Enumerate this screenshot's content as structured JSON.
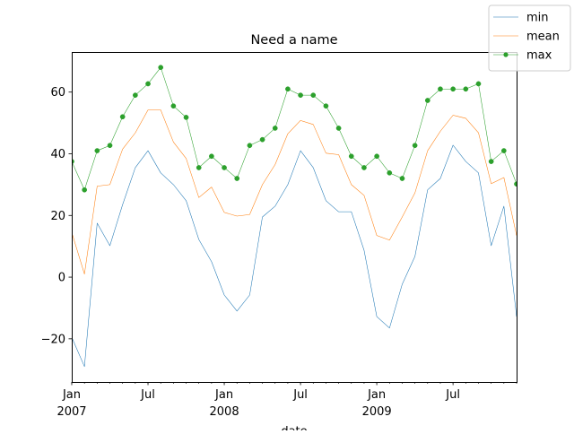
{
  "chart_data": {
    "type": "line",
    "title": "Need a name",
    "xlabel": "date",
    "ylabel": "",
    "x": [
      "2007-01",
      "2007-02",
      "2007-03",
      "2007-04",
      "2007-05",
      "2007-06",
      "2007-07",
      "2007-08",
      "2007-09",
      "2007-10",
      "2007-11",
      "2007-12",
      "2008-01",
      "2008-02",
      "2008-03",
      "2008-04",
      "2008-05",
      "2008-06",
      "2008-07",
      "2008-08",
      "2008-09",
      "2008-10",
      "2008-11",
      "2008-12",
      "2009-01",
      "2009-02",
      "2009-03",
      "2009-04",
      "2009-05",
      "2009-06",
      "2009-07",
      "2009-08",
      "2009-09",
      "2009-10",
      "2009-11",
      "2009-12"
    ],
    "xlim": [
      "2007-01",
      "2009-12"
    ],
    "ylim": [
      -34,
      73
    ],
    "yticks": [
      -20,
      0,
      20,
      40,
      60
    ],
    "xticks": [
      {
        "at": "2007-01",
        "label": "Jan",
        "sublabel": "2007"
      },
      {
        "at": "2007-07",
        "label": "Jul",
        "sublabel": ""
      },
      {
        "at": "2008-01",
        "label": "Jan",
        "sublabel": "2008"
      },
      {
        "at": "2008-07",
        "label": "Jul",
        "sublabel": ""
      },
      {
        "at": "2009-01",
        "label": "Jan",
        "sublabel": "2009"
      },
      {
        "at": "2009-07",
        "label": "Jul",
        "sublabel": ""
      }
    ],
    "grid": false,
    "legend": "top-right",
    "series": [
      {
        "name": "min",
        "color": "#1f77b4",
        "marker": false,
        "values": [
          -19.5,
          -29,
          17.5,
          10.2,
          23.5,
          35.5,
          41,
          33.8,
          30,
          24.8,
          12.2,
          5,
          -5.8,
          -11,
          -5.8,
          19.5,
          23,
          30,
          41,
          35.5,
          24.8,
          21.2,
          21.2,
          8.7,
          -12.8,
          -16.5,
          -2.3,
          6.7,
          28.3,
          32,
          42.8,
          37.5,
          33.8,
          10.2,
          23,
          -12.8
        ]
      },
      {
        "name": "mean",
        "color": "#ff7f0e",
        "marker": false,
        "values": [
          14.5,
          1,
          29.5,
          30,
          41.5,
          46.8,
          54.2,
          54.2,
          43.8,
          38.5,
          25.8,
          29.2,
          21,
          19.8,
          20.3,
          30,
          36.5,
          46.5,
          50.8,
          49.5,
          40.2,
          39.7,
          30,
          26.5,
          13.5,
          12,
          19.5,
          27.3,
          41,
          47.3,
          52.5,
          51.5,
          46.8,
          30.3,
          32.3,
          13.5
        ]
      },
      {
        "name": "max",
        "color": "#2ca02c",
        "marker": true,
        "values": [
          37.5,
          28.3,
          41,
          42.7,
          52,
          59,
          62.7,
          68,
          55.5,
          51.8,
          35.5,
          39.2,
          35.5,
          32,
          42.7,
          44.6,
          48.3,
          61,
          59,
          59,
          55.5,
          48.3,
          39.2,
          35.5,
          39.2,
          33.8,
          32,
          42.7,
          57.3,
          61,
          61,
          61,
          62.7,
          37.5,
          41,
          30.2
        ]
      }
    ]
  }
}
